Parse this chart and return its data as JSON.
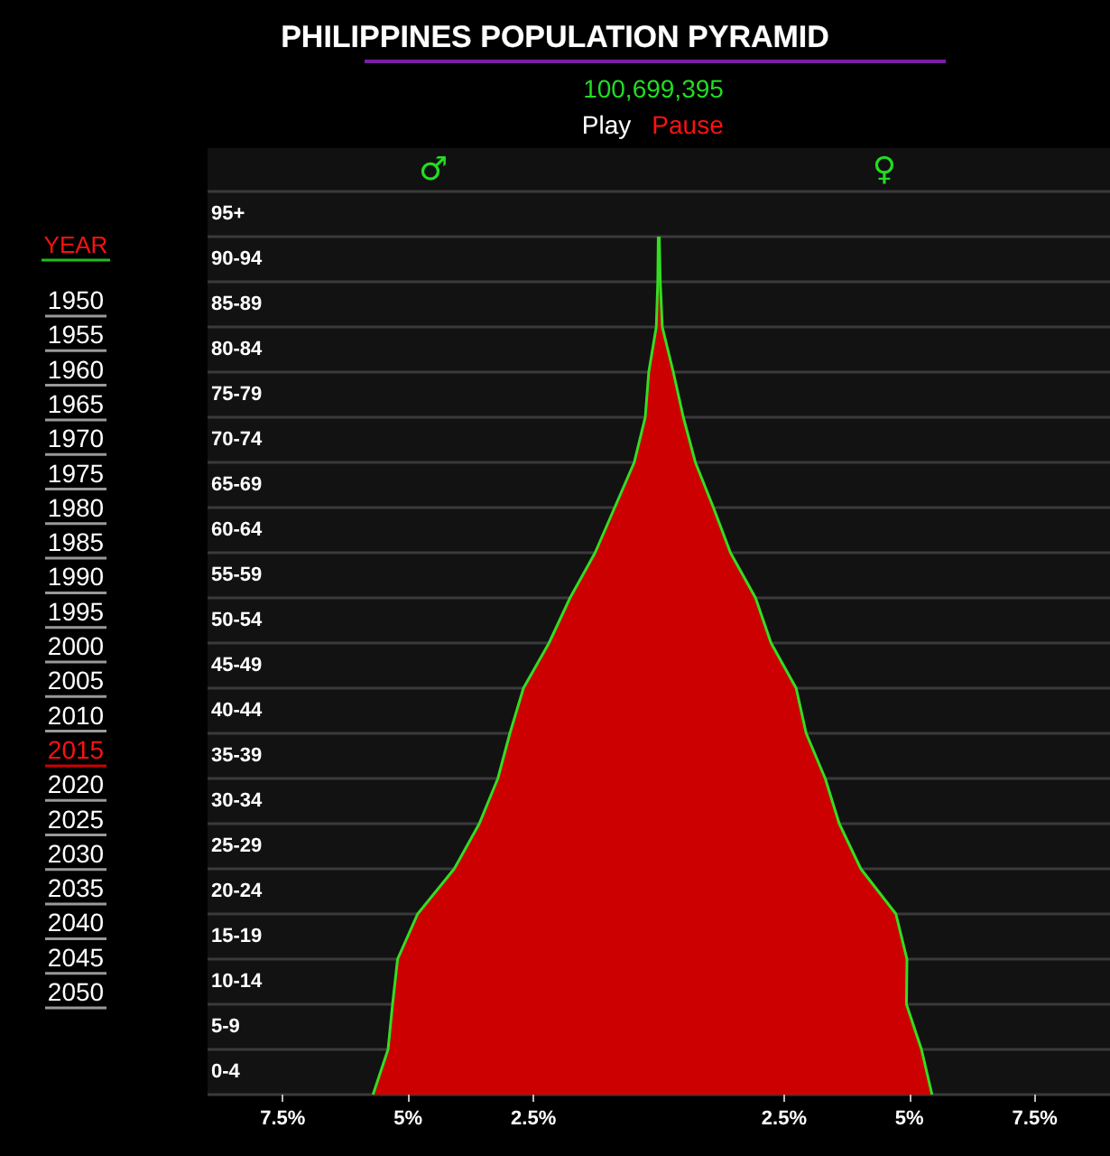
{
  "chart_data": {
    "type": "area",
    "orientation": "horizontal",
    "title": "PHILIPPINES POPULATION PYRAMID",
    "subtitle": "100,699,395",
    "annotations": [
      "♂",
      "♀",
      "Play",
      "Pause",
      "YEAR",
      "1950",
      "1955",
      "1960",
      "1965",
      "1970",
      "1975",
      "1980",
      "1985",
      "1990",
      "1995",
      "2000",
      "2005",
      "2010",
      "2015",
      "2020",
      "2025",
      "2030",
      "2035",
      "2040",
      "2045",
      "2050"
    ],
    "categories": [
      "95+",
      "90-94",
      "85-89",
      "80-84",
      "75-79",
      "70-74",
      "65-69",
      "60-64",
      "55-59",
      "50-54",
      "45-49",
      "40-44",
      "35-39",
      "30-34",
      "25-29",
      "20-24",
      "15-19",
      "10-14",
      "5-9",
      "0-4"
    ],
    "series": [
      {
        "color": "#cc0000",
        "values": [
          -0.01,
          -0.02,
          -0.05,
          -0.2,
          -0.27,
          -0.49,
          -0.88,
          -1.27,
          -1.77,
          -2.19,
          -2.7,
          -2.97,
          -3.21,
          -3.58,
          -4.08,
          -4.81,
          -5.21,
          -5.31,
          -5.4,
          -5.7
        ]
      },
      {
        "color": "#cc0000",
        "values": [
          0.01,
          0.03,
          0.07,
          0.29,
          0.49,
          0.73,
          1.09,
          1.43,
          1.93,
          2.24,
          2.74,
          2.94,
          3.32,
          3.6,
          4.03,
          4.73,
          4.95,
          4.94,
          5.24,
          5.45
        ]
      }
    ],
    "xlim": [
      -9,
      9
    ],
    "xticks": [
      {
        "value": -7.5,
        "label": "7.5%"
      },
      {
        "value": -5,
        "label": "5%"
      },
      {
        "value": -2.5,
        "label": "2.5%"
      },
      {
        "value": 2.5,
        "label": "2.5%"
      },
      {
        "value": 5,
        "label": "5%"
      },
      {
        "value": 7.5,
        "label": "7.5%"
      }
    ],
    "grid": "y"
  }
}
